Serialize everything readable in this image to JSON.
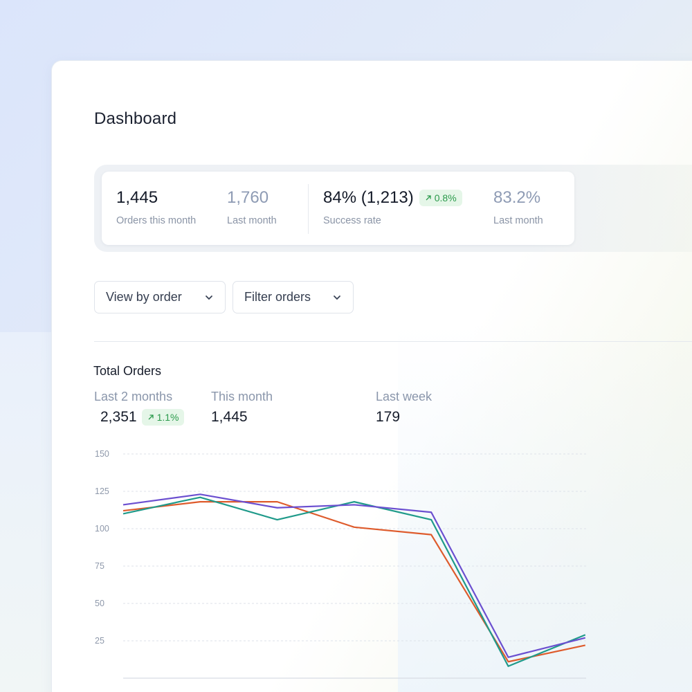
{
  "header": {
    "title": "Dashboard"
  },
  "stats": {
    "orders": {
      "value": "1,445",
      "label": "Orders this month"
    },
    "orders_last": {
      "value": "1,760",
      "label": "Last month"
    },
    "success": {
      "value": "84% (1,213)",
      "label": "Success rate",
      "badge": "0.8%"
    },
    "success_last": {
      "value": "83.2%",
      "label": "Last month"
    }
  },
  "controls": {
    "view_by": "View by order",
    "filter": "Filter orders"
  },
  "total_orders": {
    "title": "Total Orders",
    "metrics": [
      {
        "label": "Last 2 months",
        "value": "2,351",
        "badge": "1.1%"
      },
      {
        "label": "This month",
        "value": "1,445"
      },
      {
        "label": "Last week",
        "value": "179"
      }
    ]
  },
  "colors": {
    "accent_green_bg": "#e5f6e8",
    "accent_green_text": "#2a9a4b",
    "series_orange": "#de5b2c",
    "series_teal": "#1f9a8a",
    "series_purple": "#6b4fd0"
  },
  "icons": {
    "badge": "arrow-up-right-icon",
    "dropdown": "chevron-down-icon"
  },
  "chart_data": {
    "type": "line",
    "ylim": [
      0,
      150
    ],
    "yticks": [
      25,
      50,
      75,
      100,
      125,
      150
    ],
    "x": [
      0,
      1,
      2,
      3,
      4,
      5,
      6
    ],
    "grid": true,
    "series": [
      {
        "color": "#de5b2c",
        "values": [
          112,
          118,
          118,
          101,
          96,
          11,
          22
        ]
      },
      {
        "color": "#1f9a8a",
        "values": [
          110,
          121,
          106,
          118,
          106,
          8,
          29
        ]
      },
      {
        "color": "#6b4fd0",
        "values": [
          116,
          123,
          114,
          116,
          111,
          14,
          27
        ]
      }
    ]
  }
}
